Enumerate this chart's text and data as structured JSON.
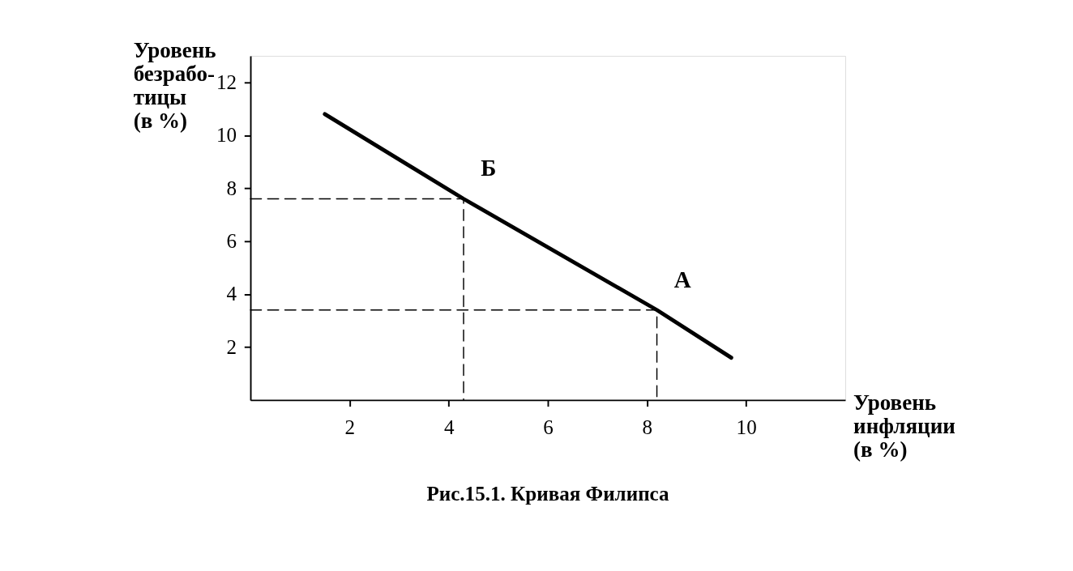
{
  "chart_data": {
    "type": "line",
    "title": "Рис.15.1. Кривая Филипса",
    "xlabel": "Уровень\nинфляции\n(в %)",
    "ylabel": "Уровень\nбезрабо-\nтицы\n(в %)",
    "xlim": [
      0,
      12
    ],
    "ylim": [
      0,
      13
    ],
    "xticks": [
      2,
      4,
      6,
      8,
      10
    ],
    "yticks": [
      2,
      4,
      6,
      8,
      10,
      12
    ],
    "grid": false,
    "marker": "none",
    "series": [
      {
        "color": "#000000",
        "line_style": "solid",
        "x": [
          1.5,
          4.3,
          8.2,
          9.7
        ],
        "values": [
          10.8,
          7.6,
          3.4,
          1.6
        ]
      },
      {
        "color": "#000000",
        "line_style": "dashed",
        "x": [
          0,
          4.3,
          4.3
        ],
        "values": [
          7.6,
          7.6,
          0
        ]
      },
      {
        "color": "#000000",
        "line_style": "dashed",
        "x": [
          0,
          8.2,
          8.2
        ],
        "values": [
          3.4,
          3.4,
          0
        ]
      }
    ],
    "annotations": [
      {
        "text": "Б",
        "x": 4.3,
        "y": 7.6
      },
      {
        "text": "А",
        "x": 8.2,
        "y": 3.4
      }
    ]
  }
}
